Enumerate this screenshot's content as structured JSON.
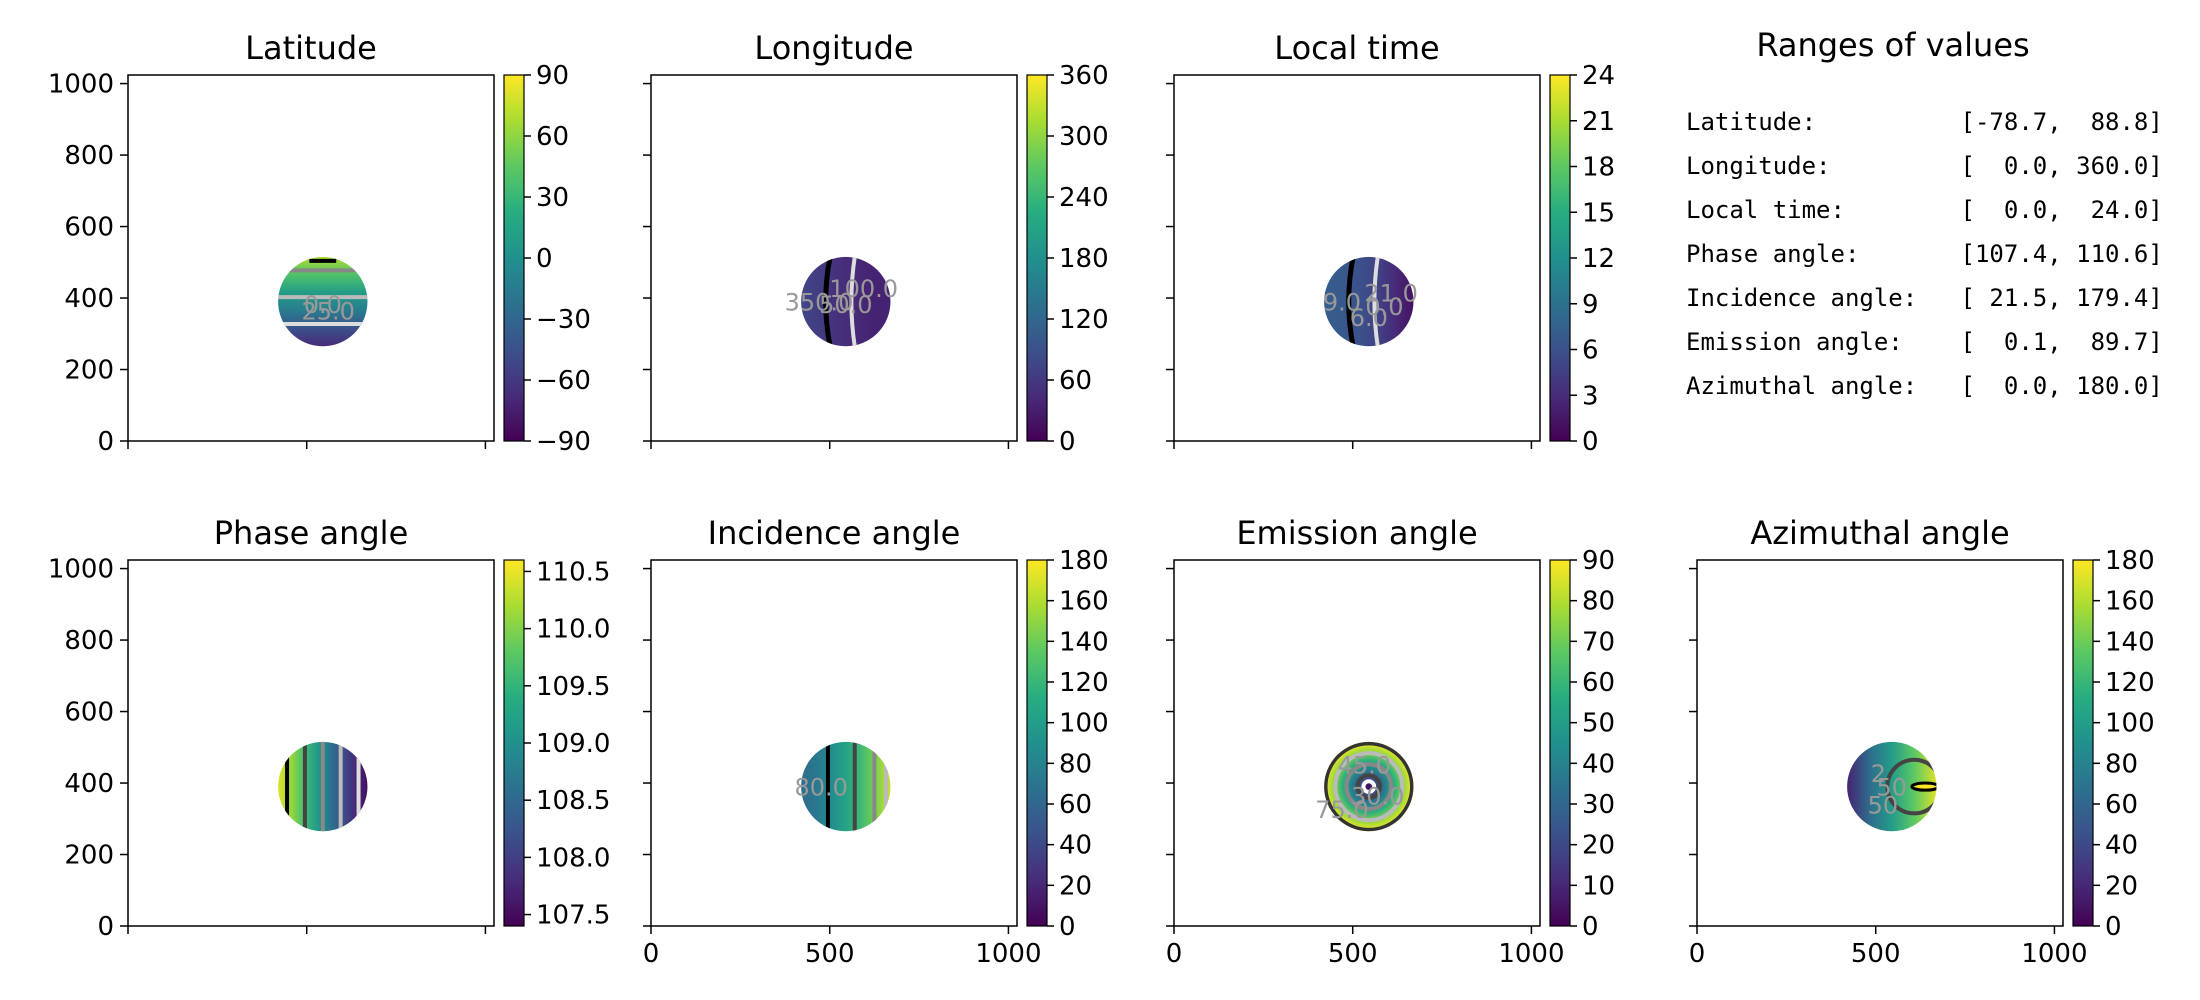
{
  "colors": {
    "background": "#ffffff",
    "axes": "#000000",
    "colormap": "viridis",
    "contour_colors": [
      "#000000",
      "#444444",
      "#888888",
      "#bbbbbb",
      "#dddddd"
    ]
  },
  "chart_data": [
    {
      "type": "heatmap",
      "title": "Latitude",
      "variable": "latitude",
      "xlim": [
        0,
        1024
      ],
      "ylim": [
        0,
        1024
      ],
      "xticks": [
        0,
        500,
        1000
      ],
      "xtick_labels_shown": false,
      "yticks": [
        0,
        200,
        400,
        600,
        800,
        1000
      ],
      "ytick_labels_shown": true,
      "disk_center": [
        545,
        390
      ],
      "disk_radius": 125,
      "colorbar": {
        "vmin": -90,
        "vmax": 90,
        "ticks": [
          -90,
          -60,
          -30,
          0,
          30,
          60,
          90
        ],
        "tick_labels": [
          "−90",
          "−60",
          "−30",
          "0",
          "30",
          "60",
          "90"
        ]
      },
      "contour_labels": [
        "25.0",
        "0.0"
      ]
    },
    {
      "type": "heatmap",
      "title": "Longitude",
      "variable": "longitude",
      "xlim": [
        0,
        1024
      ],
      "ylim": [
        0,
        1024
      ],
      "xticks": [
        0,
        500,
        1000
      ],
      "xtick_labels_shown": false,
      "yticks": [
        0,
        200,
        400,
        600,
        800,
        1000
      ],
      "ytick_labels_shown": false,
      "disk_center": [
        545,
        390
      ],
      "disk_radius": 125,
      "colorbar": {
        "vmin": 0,
        "vmax": 360,
        "ticks": [
          0,
          60,
          120,
          180,
          240,
          300,
          360
        ],
        "tick_labels": [
          "0",
          "60",
          "120",
          "180",
          "240",
          "300",
          "360"
        ]
      },
      "contour_labels": [
        "350.0",
        "50.0",
        "100.0"
      ]
    },
    {
      "type": "heatmap",
      "title": "Local time",
      "variable": "local_time",
      "xlim": [
        0,
        1024
      ],
      "ylim": [
        0,
        1024
      ],
      "xticks": [
        0,
        500,
        1000
      ],
      "xtick_labels_shown": false,
      "yticks": [
        0,
        200,
        400,
        600,
        800,
        1000
      ],
      "ytick_labels_shown": false,
      "disk_center": [
        545,
        390
      ],
      "disk_radius": 125,
      "colorbar": {
        "vmin": 0,
        "vmax": 24,
        "ticks": [
          0,
          3,
          6,
          9,
          12,
          15,
          18,
          21,
          24
        ],
        "tick_labels": [
          "0",
          "3",
          "6",
          "9",
          "12",
          "15",
          "18",
          "21",
          "24"
        ]
      },
      "contour_labels": [
        "21.0",
        "0.0",
        "6.0",
        "9.0"
      ]
    },
    {
      "type": "heatmap",
      "title": "Phase angle",
      "variable": "phase_angle",
      "xlim": [
        0,
        1024
      ],
      "ylim": [
        0,
        1024
      ],
      "xticks": [
        0,
        500,
        1000
      ],
      "xtick_labels_shown": false,
      "yticks": [
        0,
        200,
        400,
        600,
        800,
        1000
      ],
      "ytick_labels_shown": true,
      "disk_center": [
        545,
        390
      ],
      "disk_radius": 125,
      "colorbar": {
        "vmin": 107.4,
        "vmax": 110.6,
        "ticks": [
          107.5,
          108.0,
          108.5,
          109.0,
          109.5,
          110.0,
          110.5
        ],
        "tick_labels": [
          "107.5",
          "108.0",
          "108.5",
          "109.0",
          "109.5",
          "110.0",
          "110.5"
        ]
      },
      "contour_labels": []
    },
    {
      "type": "heatmap",
      "title": "Incidence angle",
      "variable": "incidence_angle",
      "xlim": [
        0,
        1024
      ],
      "ylim": [
        0,
        1024
      ],
      "xticks": [
        0,
        500,
        1000
      ],
      "xtick_labels_shown": true,
      "yticks": [
        0,
        200,
        400,
        600,
        800,
        1000
      ],
      "ytick_labels_shown": false,
      "disk_center": [
        545,
        390
      ],
      "disk_radius": 125,
      "colorbar": {
        "vmin": 0,
        "vmax": 180,
        "ticks": [
          0,
          20,
          40,
          60,
          80,
          100,
          120,
          140,
          160,
          180
        ],
        "tick_labels": [
          "0",
          "20",
          "40",
          "60",
          "80",
          "100",
          "120",
          "140",
          "160",
          "180"
        ]
      },
      "contour_labels": [
        "80.0"
      ]
    },
    {
      "type": "heatmap",
      "title": "Emission angle",
      "variable": "emission_angle",
      "xlim": [
        0,
        1024
      ],
      "ylim": [
        0,
        1024
      ],
      "xticks": [
        0,
        500,
        1000
      ],
      "xtick_labels_shown": true,
      "yticks": [
        0,
        200,
        400,
        600,
        800,
        1000
      ],
      "ytick_labels_shown": false,
      "disk_center": [
        545,
        390
      ],
      "disk_radius": 125,
      "colorbar": {
        "vmin": 0,
        "vmax": 90,
        "ticks": [
          0,
          10,
          20,
          30,
          40,
          50,
          60,
          70,
          80,
          90
        ],
        "tick_labels": [
          "0",
          "10",
          "20",
          "30",
          "40",
          "50",
          "60",
          "70",
          "80",
          "90"
        ]
      },
      "contour_labels": [
        "75.0",
        "45.0",
        "30.0"
      ]
    },
    {
      "type": "heatmap",
      "title": "Azimuthal angle",
      "variable": "azimuthal_angle",
      "xlim": [
        0,
        1024
      ],
      "ylim": [
        0,
        1024
      ],
      "xticks": [
        0,
        500,
        1000
      ],
      "xtick_labels_shown": true,
      "yticks": [
        0,
        200,
        400,
        600,
        800,
        1000
      ],
      "ytick_labels_shown": false,
      "disk_center": [
        545,
        390
      ],
      "disk_radius": 125,
      "colorbar": {
        "vmin": 0,
        "vmax": 180,
        "ticks": [
          0,
          20,
          40,
          60,
          80,
          100,
          120,
          140,
          160,
          180
        ],
        "tick_labels": [
          "0",
          "20",
          "40",
          "60",
          "80",
          "100",
          "120",
          "140",
          "160",
          "180"
        ]
      },
      "contour_labels": [
        "2",
        "50",
        "50"
      ]
    },
    {
      "type": "table",
      "title": "Ranges of values",
      "rows": [
        "Latitude:          [-78.7,  88.8]",
        "Longitude:         [  0.0, 360.0]",
        "Local time:        [  0.0,  24.0]",
        "Phase angle:       [107.4, 110.6]",
        "Incidence angle:   [ 21.5, 179.4]",
        "Emission angle:    [  0.1,  89.7]",
        "Azimuthal angle:   [  0.0, 180.0]"
      ]
    }
  ]
}
